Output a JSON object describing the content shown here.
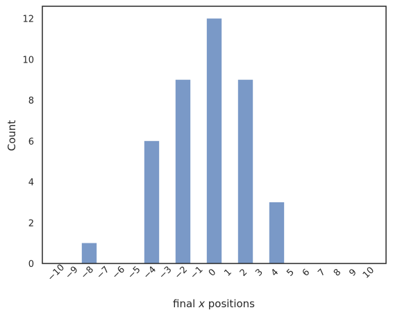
{
  "chart_data": {
    "type": "bar",
    "xlabel_prefix": "final ",
    "xlabel_var": "x",
    "xlabel_suffix": " positions",
    "ylabel": "Count",
    "categories": [
      "−10",
      "−9",
      "−8",
      "−7",
      "−6",
      "−5",
      "−4",
      "−3",
      "−2",
      "−1",
      "0",
      "1",
      "2",
      "3",
      "4",
      "5",
      "6",
      "7",
      "8",
      "9",
      "10"
    ],
    "x": [
      -10,
      -9,
      -8,
      -7,
      -6,
      -5,
      -4,
      -3,
      -2,
      -1,
      0,
      1,
      2,
      3,
      4,
      5,
      6,
      7,
      8,
      9,
      10
    ],
    "values": [
      0,
      0,
      1,
      0,
      0,
      0,
      6,
      0,
      9,
      0,
      12,
      0,
      9,
      0,
      3,
      0,
      0,
      0,
      0,
      0,
      0
    ],
    "xlim": [
      -11,
      11
    ],
    "ylim": [
      0,
      12.6
    ],
    "yticks": [
      0,
      2,
      4,
      6,
      8,
      10,
      12
    ],
    "bar_color": "#7a99c7",
    "grid": false,
    "legend": "none"
  }
}
